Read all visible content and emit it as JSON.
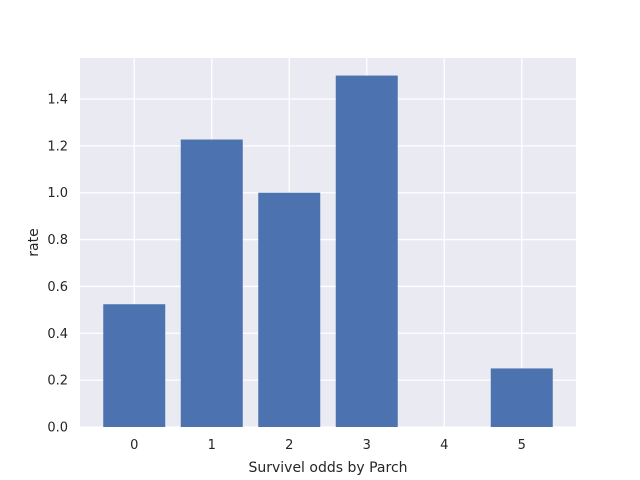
{
  "chart_data": {
    "type": "bar",
    "categories": [
      "0",
      "1",
      "2",
      "3",
      "4",
      "5"
    ],
    "values": [
      0.524,
      1.227,
      1.0,
      1.5,
      0.0,
      0.25
    ],
    "title": "",
    "xlabel": "Survivel odds by Parch",
    "ylabel": "rate",
    "ylim": [
      0,
      1.575
    ],
    "yticks": [
      0.0,
      0.2,
      0.4,
      0.6,
      0.8,
      1.0,
      1.2,
      1.4
    ],
    "ytick_labels": [
      "0.0",
      "0.2",
      "0.4",
      "0.6",
      "0.8",
      "1.0",
      "1.2",
      "1.4"
    ],
    "grid": true,
    "colors": {
      "bar": "#4c72b0",
      "background": "#eaeaf2",
      "grid": "#ffffff"
    }
  }
}
